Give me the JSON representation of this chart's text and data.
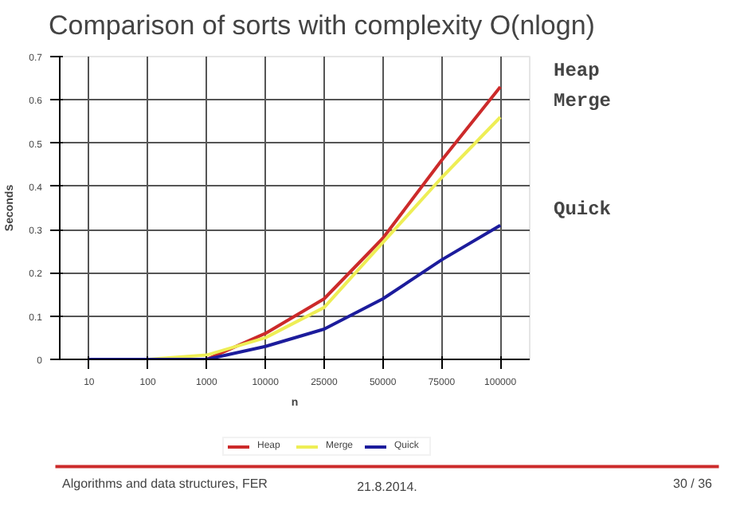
{
  "chart_data": {
    "type": "line",
    "title": "Comparison of sorts with complexity O(nlogn)",
    "xlabel": "n",
    "ylabel": "Seconds",
    "categories": [
      "10",
      "100",
      "1000",
      "10000",
      "25000",
      "50000",
      "75000",
      "100000"
    ],
    "series": [
      {
        "name": "Heap",
        "color": "#cc2a2a",
        "values": [
          0,
          0,
          0,
          0.06,
          0.14,
          0.28,
          0.46,
          0.63
        ]
      },
      {
        "name": "Merge",
        "color": "#eeee55",
        "values": [
          0,
          0,
          0.01,
          0.05,
          0.12,
          0.27,
          0.42,
          0.56
        ]
      },
      {
        "name": "Quick",
        "color": "#1c1c9c",
        "values": [
          0,
          0,
          0,
          0.03,
          0.07,
          0.14,
          0.23,
          0.31
        ]
      }
    ],
    "ylim": [
      0,
      0.7
    ],
    "yticks": [
      0,
      0.1,
      0.2,
      0.3,
      0.4,
      0.5,
      0.6,
      0.7
    ],
    "grid": true,
    "legend": "bottom",
    "marker": "none",
    "line_style": "solid",
    "annotations": [
      "Algorithms and data structures, FER",
      "21.8.2014.",
      "30 / 36"
    ]
  }
}
